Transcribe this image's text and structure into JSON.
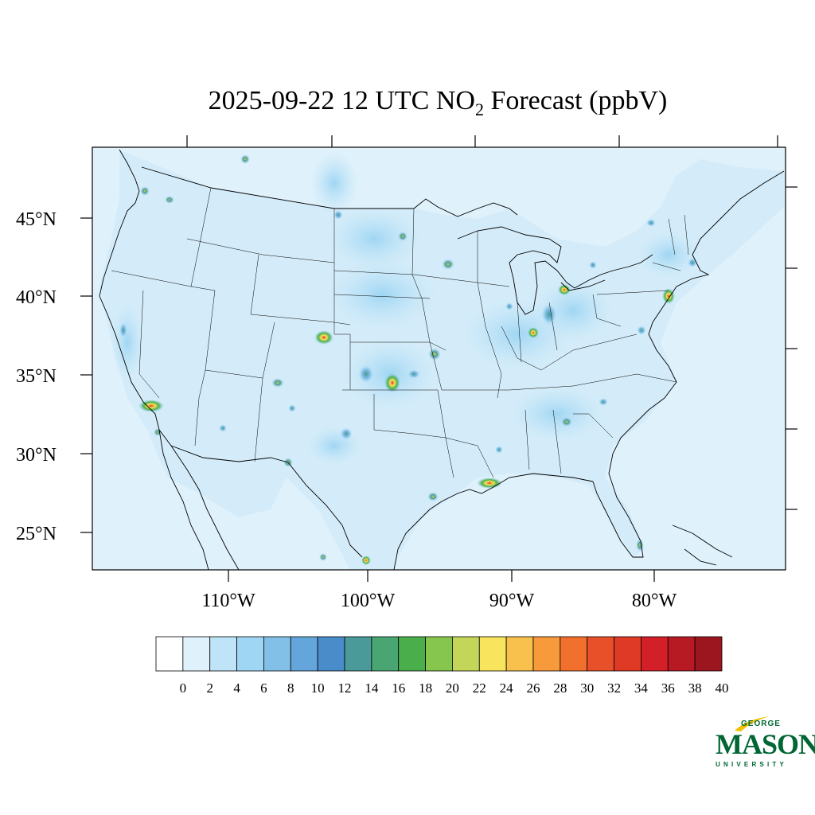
{
  "title": {
    "prefix": "2025-09-22 12 UTC NO",
    "subscript": "2",
    "suffix": " Forecast (ppbV)"
  },
  "axes": {
    "lat_labels": [
      "45°N",
      "40°N",
      "35°N",
      "30°N",
      "25°N"
    ],
    "lon_labels": [
      "110°W",
      "100°W",
      "90°W",
      "80°W"
    ]
  },
  "colorbar": {
    "labels": [
      "0",
      "2",
      "4",
      "6",
      "8",
      "10",
      "12",
      "14",
      "16",
      "18",
      "20",
      "22",
      "24",
      "26",
      "28",
      "30",
      "32",
      "34",
      "36",
      "38",
      "40"
    ],
    "colors": [
      "#ffffff",
      "#dff1fb",
      "#bfe4f8",
      "#9fd6f3",
      "#82c0e8",
      "#64a6dc",
      "#4a8bc9",
      "#4a9a9a",
      "#49a571",
      "#4aaf4a",
      "#86c64e",
      "#c4d65a",
      "#f8e45d",
      "#f8c04c",
      "#f69a3c",
      "#f2702e",
      "#e8502a",
      "#de3a26",
      "#d21f28",
      "#b81a24",
      "#9c1620"
    ]
  },
  "logo": {
    "top": "GEORGE",
    "main": "MASON",
    "bottom": "UNIVERSITY"
  }
}
